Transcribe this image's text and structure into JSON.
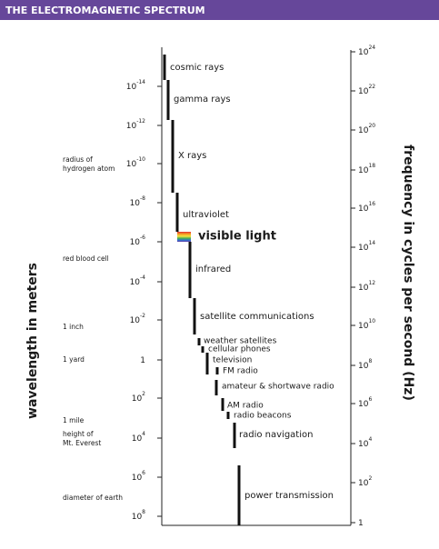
{
  "header": {
    "title": "THE ELECTROMAGNETIC SPECTRUM"
  },
  "axes": {
    "wavelength_title": "wavelength in meters",
    "frequency_title": "frequency in cycles per second (Hz)"
  },
  "wavelength_ticks": [
    {
      "base": "10",
      "exp": "-14"
    },
    {
      "base": "10",
      "exp": "-12"
    },
    {
      "base": "10",
      "exp": "-10"
    },
    {
      "base": "10",
      "exp": "-8"
    },
    {
      "base": "10",
      "exp": "-6"
    },
    {
      "base": "10",
      "exp": "-4"
    },
    {
      "base": "10",
      "exp": "-2"
    },
    {
      "base": "1"
    },
    {
      "base": "10",
      "exp": "2"
    },
    {
      "base": "10",
      "exp": "4"
    },
    {
      "base": "10",
      "exp": "6"
    },
    {
      "base": "10",
      "exp": "8"
    }
  ],
  "frequency_ticks": [
    {
      "base": "10",
      "exp": "24"
    },
    {
      "base": "10",
      "exp": "22"
    },
    {
      "base": "10",
      "exp": "20"
    },
    {
      "base": "10",
      "exp": "18"
    },
    {
      "base": "10",
      "exp": "16"
    },
    {
      "base": "10",
      "exp": "14"
    },
    {
      "base": "10",
      "exp": "12"
    },
    {
      "base": "10",
      "exp": "10"
    },
    {
      "base": "10",
      "exp": "8"
    },
    {
      "base": "10",
      "exp": "6"
    },
    {
      "base": "10",
      "exp": "4"
    },
    {
      "base": "10",
      "exp": "2"
    },
    {
      "base": "1"
    }
  ],
  "references": [
    [
      "radius of",
      "hydrogen atom"
    ],
    [
      "red blood cell"
    ],
    [
      "1 inch"
    ],
    [
      "1 yard"
    ],
    [
      "1 mile"
    ],
    [
      "height of",
      "Mt. Everest"
    ],
    [
      "diameter of earth"
    ]
  ],
  "bands": [
    "cosmic rays",
    "gamma rays",
    "X rays",
    "ultraviolet",
    "visible light",
    "infrared",
    "satellite communications",
    "weather satellites",
    "cellular phones",
    "television",
    "FM radio",
    "amateur & shortwave radio",
    "AM radio",
    "radio beacons",
    "radio navigation",
    "power transmission"
  ]
}
